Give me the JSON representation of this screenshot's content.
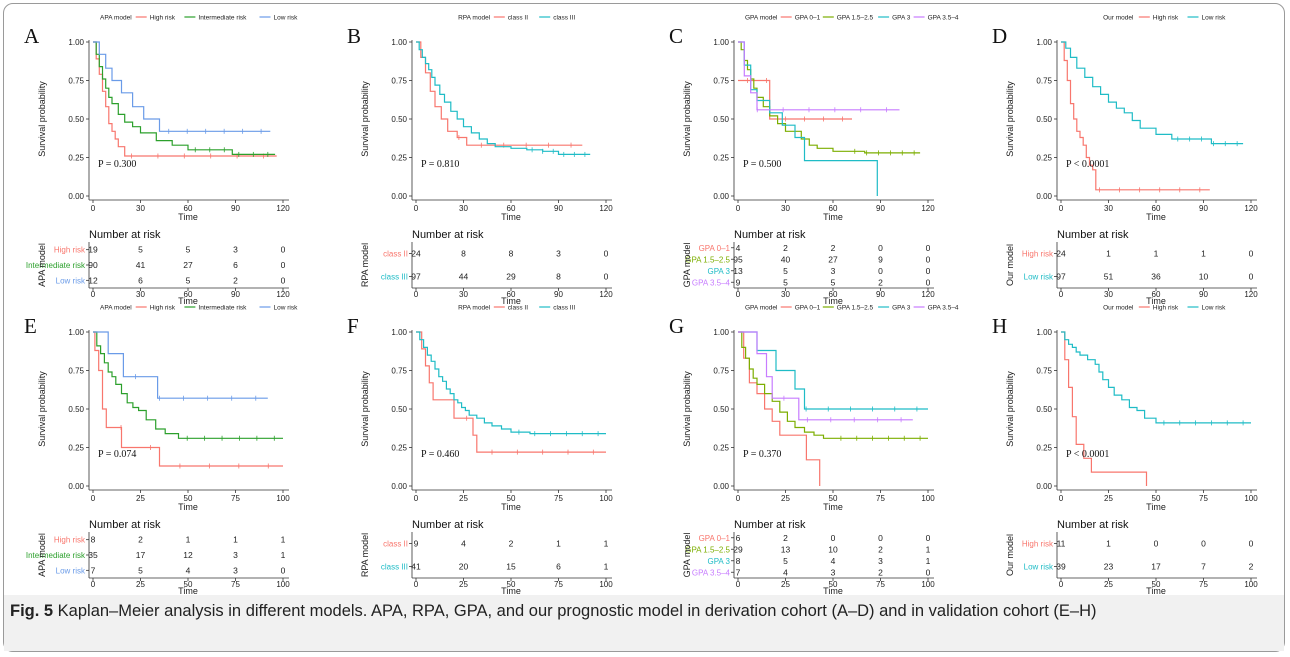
{
  "figure": {
    "caption_label": "Fig. 5",
    "caption_text": "  Kaplan–Meier analysis in different models. APA, RPA, GPA, and our prognostic model in derivation cohort (A–D) and in validation cohort (E–H)",
    "survival_ylabel": "Survival probability",
    "time_label": "Time",
    "risk_header": "Number at risk"
  },
  "chart_data": [
    {
      "panel": "A",
      "type": "line",
      "legend_title": "APA model",
      "xlim": [
        0,
        120
      ],
      "x_ticks": [
        0,
        30,
        60,
        90,
        120
      ],
      "ylim": [
        0,
        1
      ],
      "y_ticks": [
        "0.00",
        "0.25",
        "0.50",
        "0.75",
        "1.00"
      ],
      "pvalue": "P = 0.300",
      "risk_table_ylabel": "APA model",
      "series": [
        {
          "name": "High risk",
          "color": "#f8766d",
          "x": [
            0,
            2,
            4,
            6,
            8,
            10,
            12,
            14,
            16,
            20,
            24,
            116
          ],
          "y": [
            1,
            0.89,
            0.79,
            0.68,
            0.58,
            0.47,
            0.42,
            0.37,
            0.32,
            0.26,
            0.26,
            0.26
          ],
          "risk": [
            19,
            5,
            5,
            3,
            0
          ]
        },
        {
          "name": "Intermediate risk",
          "color": "#2ca02c",
          "x": [
            0,
            2,
            4,
            6,
            8,
            10,
            12,
            16,
            20,
            25,
            30,
            40,
            50,
            60,
            70,
            88,
            115
          ],
          "y": [
            1,
            0.92,
            0.84,
            0.76,
            0.7,
            0.64,
            0.6,
            0.53,
            0.48,
            0.45,
            0.41,
            0.36,
            0.33,
            0.3,
            0.3,
            0.27,
            0.27
          ],
          "risk": [
            90,
            41,
            27,
            6,
            0
          ]
        },
        {
          "name": "Low risk",
          "color": "#6a9be8",
          "x": [
            0,
            4,
            8,
            12,
            18,
            25,
            32,
            42,
            60,
            90,
            112
          ],
          "y": [
            1,
            0.92,
            0.83,
            0.75,
            0.67,
            0.58,
            0.5,
            0.42,
            0.42,
            0.42,
            0.42
          ],
          "risk": [
            12,
            6,
            5,
            2,
            0
          ]
        }
      ]
    },
    {
      "panel": "B",
      "type": "line",
      "legend_title": "RPA model",
      "xlim": [
        0,
        120
      ],
      "x_ticks": [
        0,
        30,
        60,
        90,
        120
      ],
      "ylim": [
        0,
        1
      ],
      "y_ticks": [
        "0.00",
        "0.25",
        "0.50",
        "0.75",
        "1.00"
      ],
      "pvalue": "P = 0.810",
      "risk_table_ylabel": "RPA model",
      "series": [
        {
          "name": "class II",
          "color": "#f8766d",
          "x": [
            0,
            3,
            6,
            9,
            12,
            16,
            20,
            26,
            32,
            105
          ],
          "y": [
            1,
            0.9,
            0.8,
            0.68,
            0.58,
            0.5,
            0.42,
            0.38,
            0.33,
            0.33
          ],
          "risk": [
            24,
            8,
            8,
            3,
            0
          ]
        },
        {
          "name": "class III",
          "color": "#1fbcc6",
          "x": [
            0,
            2,
            4,
            6,
            8,
            10,
            12,
            15,
            18,
            22,
            26,
            30,
            35,
            40,
            45,
            50,
            60,
            70,
            80,
            90,
            110
          ],
          "y": [
            1,
            0.95,
            0.9,
            0.86,
            0.82,
            0.77,
            0.72,
            0.66,
            0.61,
            0.55,
            0.5,
            0.45,
            0.41,
            0.37,
            0.34,
            0.32,
            0.31,
            0.3,
            0.29,
            0.27,
            0.27
          ],
          "risk": [
            97,
            44,
            29,
            8,
            0
          ]
        }
      ]
    },
    {
      "panel": "C",
      "type": "line",
      "legend_title": "GPA model",
      "xlim": [
        0,
        120
      ],
      "x_ticks": [
        0,
        30,
        60,
        90,
        120
      ],
      "ylim": [
        0,
        1
      ],
      "y_ticks": [
        "0.00",
        "0.25",
        "0.50",
        "0.75",
        "1.00"
      ],
      "pvalue": "P = 0.500",
      "risk_table_ylabel": "GPA model",
      "series": [
        {
          "name": "GPA 0–1",
          "color": "#f8766d",
          "x": [
            0,
            16,
            20,
            72
          ],
          "y": [
            0.75,
            0.75,
            0.5,
            0.5
          ],
          "risk": [
            4,
            2,
            2,
            0,
            0
          ]
        },
        {
          "name": "GPA 1.5–2.5",
          "color": "#7cae00",
          "x": [
            0,
            2,
            4,
            6,
            8,
            10,
            12,
            16,
            20,
            25,
            30,
            40,
            45,
            50,
            60,
            70,
            80,
            90,
            115
          ],
          "y": [
            1,
            0.95,
            0.88,
            0.82,
            0.76,
            0.7,
            0.64,
            0.58,
            0.52,
            0.47,
            0.42,
            0.37,
            0.33,
            0.31,
            0.29,
            0.29,
            0.28,
            0.28,
            0.28
          ],
          "risk": [
            95,
            40,
            27,
            9,
            0
          ]
        },
        {
          "name": "GPA 3",
          "color": "#1fbcc6",
          "x": [
            0,
            4,
            8,
            12,
            20,
            28,
            36,
            42,
            60,
            80,
            87,
            88
          ],
          "y": [
            1,
            0.85,
            0.69,
            0.62,
            0.54,
            0.46,
            0.38,
            0.23,
            0.23,
            0.23,
            0.23,
            0
          ],
          "risk": [
            13,
            5,
            3,
            0,
            0
          ]
        },
        {
          "name": "GPA 3.5–4",
          "color": "#c77cff",
          "x": [
            0,
            4,
            8,
            12,
            102
          ],
          "y": [
            1,
            0.78,
            0.67,
            0.56,
            0.56
          ],
          "risk": [
            9,
            5,
            5,
            2,
            0
          ]
        }
      ]
    },
    {
      "panel": "D",
      "type": "line",
      "legend_title": "Our model",
      "xlim": [
        0,
        120
      ],
      "x_ticks": [
        0,
        30,
        60,
        90,
        120
      ],
      "ylim": [
        0,
        1
      ],
      "y_ticks": [
        "0.00",
        "0.25",
        "0.50",
        "0.75",
        "1.00"
      ],
      "pvalue": "P < 0.0001",
      "risk_table_ylabel": "Our model",
      "series": [
        {
          "name": "High risk",
          "color": "#f8766d",
          "x": [
            0,
            2,
            4,
            6,
            8,
            10,
            12,
            14,
            16,
            18,
            20,
            22,
            94
          ],
          "y": [
            1,
            0.88,
            0.75,
            0.6,
            0.5,
            0.42,
            0.38,
            0.33,
            0.25,
            0.2,
            0.17,
            0.04,
            0.04
          ],
          "risk": [
            24,
            1,
            1,
            1,
            0
          ]
        },
        {
          "name": "Low risk",
          "color": "#1fbcc6",
          "x": [
            0,
            3,
            6,
            10,
            15,
            20,
            25,
            30,
            35,
            40,
            45,
            50,
            60,
            70,
            85,
            95,
            115
          ],
          "y": [
            1,
            0.96,
            0.9,
            0.83,
            0.77,
            0.71,
            0.66,
            0.61,
            0.57,
            0.54,
            0.49,
            0.44,
            0.4,
            0.37,
            0.37,
            0.34,
            0.34
          ],
          "risk": [
            97,
            51,
            36,
            10,
            0
          ]
        }
      ]
    },
    {
      "panel": "E",
      "type": "line",
      "legend_title": "APA model",
      "xlim": [
        0,
        100
      ],
      "x_ticks": [
        0,
        25,
        50,
        75,
        100
      ],
      "ylim": [
        0,
        1
      ],
      "y_ticks": [
        "0.00",
        "0.25",
        "0.50",
        "0.75",
        "1.00"
      ],
      "pvalue": "P = 0.074",
      "risk_table_ylabel": "APA model",
      "series": [
        {
          "name": "High risk",
          "color": "#f8766d",
          "x": [
            0,
            1,
            3,
            5,
            7,
            15,
            35,
            100
          ],
          "y": [
            1,
            0.88,
            0.75,
            0.5,
            0.38,
            0.25,
            0.13,
            0.13
          ],
          "risk": [
            8,
            2,
            1,
            1,
            1
          ]
        },
        {
          "name": "Intermediate risk",
          "color": "#2ca02c",
          "x": [
            0,
            2,
            4,
            6,
            8,
            10,
            12,
            15,
            18,
            21,
            24,
            28,
            33,
            38,
            45,
            60,
            80,
            100
          ],
          "y": [
            1,
            0.91,
            0.86,
            0.8,
            0.74,
            0.71,
            0.66,
            0.6,
            0.54,
            0.51,
            0.49,
            0.43,
            0.37,
            0.34,
            0.31,
            0.31,
            0.31,
            0.31
          ],
          "risk": [
            35,
            17,
            12,
            3,
            1
          ]
        },
        {
          "name": "Low risk",
          "color": "#6a9be8",
          "x": [
            0,
            8,
            16,
            24,
            34,
            92
          ],
          "y": [
            1,
            0.86,
            0.71,
            0.71,
            0.57,
            0.57
          ],
          "risk": [
            7,
            5,
            4,
            3,
            0
          ]
        }
      ]
    },
    {
      "panel": "F",
      "type": "line",
      "legend_title": "RPA model",
      "xlim": [
        0,
        100
      ],
      "x_ticks": [
        0,
        25,
        50,
        75,
        100
      ],
      "ylim": [
        0,
        1
      ],
      "y_ticks": [
        "0.00",
        "0.25",
        "0.50",
        "0.75",
        "1.00"
      ],
      "pvalue": "P = 0.460",
      "risk_table_ylabel": "RPA model",
      "series": [
        {
          "name": "class II",
          "color": "#f8766d",
          "x": [
            0,
            3,
            5,
            7,
            9,
            20,
            30,
            32,
            100
          ],
          "y": [
            1,
            0.89,
            0.78,
            0.67,
            0.56,
            0.44,
            0.33,
            0.22,
            0.22
          ],
          "risk": [
            9,
            4,
            2,
            1,
            1
          ]
        },
        {
          "name": "class III",
          "color": "#1fbcc6",
          "x": [
            0,
            2,
            4,
            6,
            8,
            10,
            12,
            14,
            16,
            18,
            20,
            22,
            24,
            26,
            28,
            32,
            36,
            40,
            45,
            50,
            60,
            70,
            100
          ],
          "y": [
            1,
            0.95,
            0.9,
            0.85,
            0.81,
            0.76,
            0.71,
            0.68,
            0.63,
            0.6,
            0.56,
            0.54,
            0.51,
            0.49,
            0.46,
            0.44,
            0.41,
            0.39,
            0.37,
            0.35,
            0.34,
            0.34,
            0.34
          ],
          "risk": [
            41,
            20,
            15,
            6,
            1
          ]
        }
      ]
    },
    {
      "panel": "G",
      "type": "line",
      "legend_title": "GPA model",
      "xlim": [
        0,
        100
      ],
      "x_ticks": [
        0,
        25,
        50,
        75,
        100
      ],
      "ylim": [
        0,
        1
      ],
      "y_ticks": [
        "0.00",
        "0.25",
        "0.50",
        "0.75",
        "1.00"
      ],
      "pvalue": "P = 0.370",
      "risk_table_ylabel": "GPA model",
      "series": [
        {
          "name": "GPA 0–1",
          "color": "#f8766d",
          "x": [
            0,
            3,
            6,
            10,
            14,
            18,
            22,
            26,
            36,
            42,
            43
          ],
          "y": [
            1,
            0.83,
            0.67,
            0.6,
            0.5,
            0.42,
            0.33,
            0.33,
            0.17,
            0.17,
            0
          ],
          "risk": [
            6,
            2,
            0,
            0,
            0
          ]
        },
        {
          "name": "GPA 1.5–2.5",
          "color": "#7cae00",
          "x": [
            0,
            2,
            4,
            6,
            8,
            10,
            14,
            18,
            22,
            26,
            30,
            35,
            40,
            45,
            50,
            60,
            80,
            100
          ],
          "y": [
            1,
            0.9,
            0.83,
            0.76,
            0.7,
            0.66,
            0.6,
            0.55,
            0.48,
            0.42,
            0.38,
            0.35,
            0.33,
            0.31,
            0.31,
            0.31,
            0.31,
            0.31
          ],
          "risk": [
            29,
            13,
            10,
            2,
            1
          ]
        },
        {
          "name": "GPA 3",
          "color": "#1fbcc6",
          "x": [
            0,
            10,
            20,
            25,
            30,
            35,
            50,
            100
          ],
          "y": [
            1,
            0.88,
            0.75,
            0.75,
            0.63,
            0.5,
            0.5,
            0.5
          ],
          "risk": [
            8,
            5,
            4,
            3,
            1
          ]
        },
        {
          "name": "GPA 3.5–4",
          "color": "#c77cff",
          "x": [
            0,
            10,
            15,
            18,
            22,
            32,
            92
          ],
          "y": [
            1,
            0.86,
            0.71,
            0.57,
            0.57,
            0.43,
            0.43
          ],
          "risk": [
            7,
            4,
            3,
            2,
            0
          ]
        }
      ]
    },
    {
      "panel": "H",
      "type": "line",
      "legend_title": "Our model",
      "xlim": [
        0,
        100
      ],
      "x_ticks": [
        0,
        25,
        50,
        75,
        100
      ],
      "ylim": [
        0,
        1
      ],
      "y_ticks": [
        "0.00",
        "0.25",
        "0.50",
        "0.75",
        "1.00"
      ],
      "pvalue": "P < 0.0001",
      "risk_table_ylabel": "Our model",
      "series": [
        {
          "name": "High risk",
          "color": "#f8766d",
          "x": [
            0,
            2,
            4,
            6,
            8,
            12,
            16,
            44,
            45
          ],
          "y": [
            1,
            0.82,
            0.64,
            0.45,
            0.27,
            0.18,
            0.09,
            0.09,
            0
          ],
          "risk": [
            11,
            1,
            0,
            0,
            0
          ]
        },
        {
          "name": "Low risk",
          "color": "#1fbcc6",
          "x": [
            0,
            2,
            4,
            6,
            8,
            10,
            14,
            18,
            20,
            22,
            25,
            28,
            32,
            36,
            40,
            44,
            50,
            60,
            80,
            100
          ],
          "y": [
            1,
            0.95,
            0.92,
            0.9,
            0.87,
            0.85,
            0.82,
            0.79,
            0.74,
            0.69,
            0.64,
            0.59,
            0.56,
            0.51,
            0.49,
            0.44,
            0.41,
            0.41,
            0.41,
            0.41
          ],
          "risk": [
            39,
            23,
            17,
            7,
            2
          ]
        }
      ]
    }
  ]
}
